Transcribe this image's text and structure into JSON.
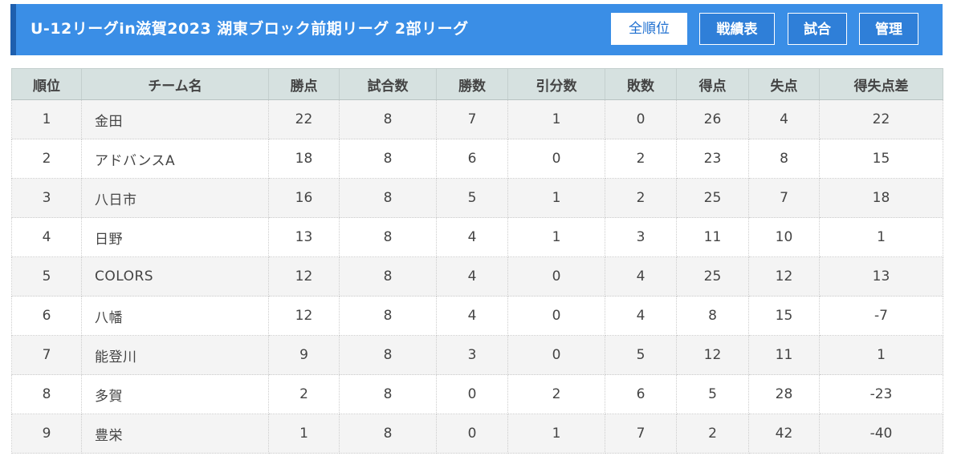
{
  "header": {
    "title": "U-12リーグin滋賀2023 湖東ブロック前期リーグ 2部リーグ",
    "buttons": [
      "全順位",
      "戦績表",
      "試合",
      "管理"
    ]
  },
  "table": {
    "columns": [
      "順位",
      "チーム名",
      "勝点",
      "試合数",
      "勝数",
      "引分数",
      "敗数",
      "得点",
      "失点",
      "得失点差"
    ],
    "rows": [
      [
        "1",
        "金田",
        "22",
        "8",
        "7",
        "1",
        "0",
        "26",
        "4",
        "22"
      ],
      [
        "2",
        "アドバンスA",
        "18",
        "8",
        "6",
        "0",
        "2",
        "23",
        "8",
        "15"
      ],
      [
        "3",
        "八日市",
        "16",
        "8",
        "5",
        "1",
        "2",
        "25",
        "7",
        "18"
      ],
      [
        "4",
        "日野",
        "13",
        "8",
        "4",
        "1",
        "3",
        "11",
        "10",
        "1"
      ],
      [
        "5",
        "COLORS",
        "12",
        "8",
        "4",
        "0",
        "4",
        "25",
        "12",
        "13"
      ],
      [
        "6",
        "八幡",
        "12",
        "8",
        "4",
        "0",
        "4",
        "8",
        "15",
        "-7"
      ],
      [
        "7",
        "能登川",
        "9",
        "8",
        "3",
        "0",
        "5",
        "12",
        "11",
        "1"
      ],
      [
        "8",
        "多賀",
        "2",
        "8",
        "0",
        "2",
        "6",
        "5",
        "28",
        "-23"
      ],
      [
        "9",
        "豊栄",
        "1",
        "8",
        "0",
        "1",
        "7",
        "2",
        "42",
        "-40"
      ]
    ]
  },
  "colors": {
    "header_bg": "#3a8ee6",
    "header_accent": "#1e5fae",
    "table_header_bg": "#d6e1e0",
    "row_alt_bg": "#f4f4f4"
  }
}
